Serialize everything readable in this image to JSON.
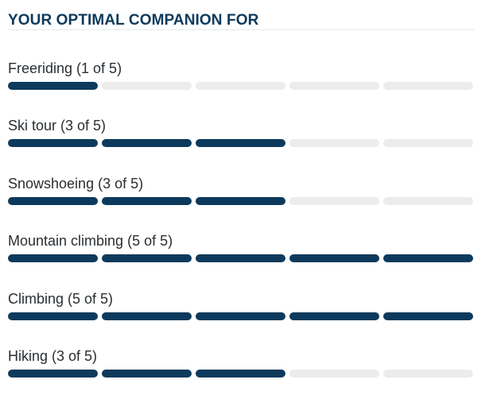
{
  "panel": {
    "title": "YOUR OPTIMAL COMPANION FOR",
    "filled_color": "#0d3a5c",
    "empty_color": "#ececec",
    "title_color": "#0d3a5c"
  },
  "ratings": [
    {
      "label": "Freeriding (1 of 5)",
      "value": 1,
      "max": 5
    },
    {
      "label": "Ski tour (3 of 5)",
      "value": 3,
      "max": 5
    },
    {
      "label": "Snowshoeing (3 of 5)",
      "value": 3,
      "max": 5
    },
    {
      "label": "Mountain climbing (5 of 5)",
      "value": 5,
      "max": 5
    },
    {
      "label": "Climbing (5 of 5)",
      "value": 5,
      "max": 5
    },
    {
      "label": "Hiking (3 of 5)",
      "value": 3,
      "max": 5
    }
  ]
}
